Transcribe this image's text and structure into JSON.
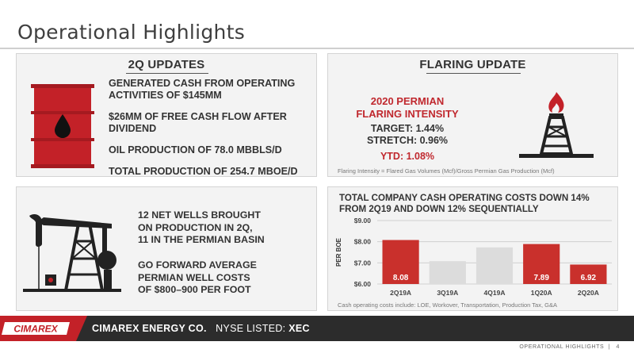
{
  "slide": {
    "title": "Operational Highlights",
    "page_label": "OPERATIONAL HIGHLIGHTS",
    "page_number": "4"
  },
  "updates": {
    "heading": "2Q UPDATES",
    "items": [
      "GENERATED CASH FROM OPERATING ACTIVITIES OF $145MM",
      "$26MM OF FREE CASH FLOW AFTER DIVIDEND",
      "OIL PRODUCTION OF 78.0 MBBLS/D",
      "TOTAL PRODUCTION OF 254.7 MBOE/D"
    ],
    "icon": "oil-barrel-icon"
  },
  "flaring": {
    "heading": "FLARING UPDATE",
    "title_line1": "2020 PERMIAN",
    "title_line2": "FLARING INTENSITY",
    "target": "TARGET: 1.44%",
    "stretch": "STRETCH: 0.96%",
    "ytd": "YTD: 1.08%",
    "footnote": "Flaring Intensity = Flared Gas Volumes (Mcf)/Gross Permian Gas Production (Mcf)",
    "icon": "flare-stack-icon"
  },
  "wells": {
    "line1": "12 NET WELLS BROUGHT",
    "line2": "ON PRODUCTION IN 2Q,",
    "line3": "11 IN THE PERMIAN BASIN",
    "line4": "GO FORWARD AVERAGE",
    "line5": "PERMIAN WELL COSTS",
    "line6": "OF $800–900 PER FOOT",
    "icon": "pumpjack-icon"
  },
  "costs": {
    "heading_line1": "TOTAL COMPANY CASH OPERATING COSTS DOWN 14%",
    "heading_line2": "FROM 2Q19 AND DOWN 12% SEQUENTIALLY",
    "footnote": "Cash operating costs include:  LOE, Workover, Transportation, Production Tax, G&A"
  },
  "chart_data": {
    "type": "bar",
    "categories": [
      "2Q19A",
      "3Q19A",
      "4Q19A",
      "1Q20A",
      "2Q20A"
    ],
    "values": [
      8.08,
      7.08,
      7.73,
      7.89,
      6.92
    ],
    "data_labels": [
      "8.08",
      "",
      "",
      "7.89",
      "6.92"
    ],
    "highlighted": [
      true,
      false,
      false,
      true,
      true
    ],
    "ylabel": "PER BOE",
    "yticks": [
      "$6.00",
      "$7.00",
      "$8.00",
      "$9.00"
    ],
    "ylim": [
      6,
      9
    ],
    "grid": true,
    "colors": {
      "highlight": "#c9302c",
      "muted": "#dcdcdc"
    }
  },
  "footer": {
    "logo_text": "CIMAREX",
    "company": "CIMAREX ENERGY CO.",
    "listed_label": "NYSE LISTED: ",
    "ticker": "XEC"
  },
  "colors": {
    "brand_red": "#c32128",
    "footer_dark": "#2c2c2c",
    "panel_bg": "#f3f3f3"
  }
}
